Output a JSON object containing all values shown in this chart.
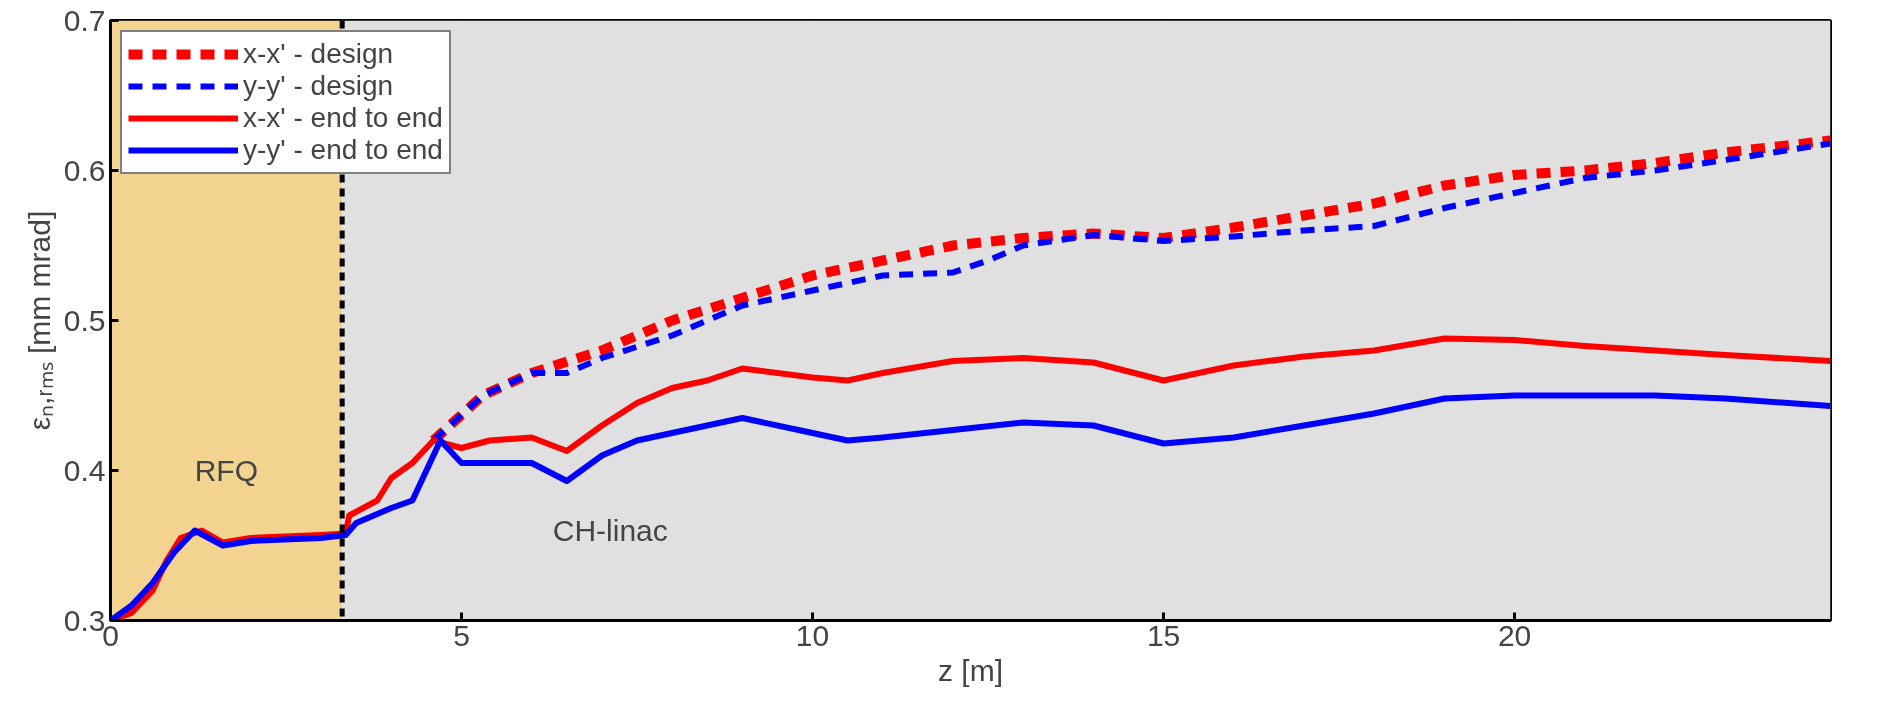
{
  "chart_data": {
    "type": "line",
    "xlabel": "z [m]",
    "ylabel": "εₙ,ᵣₘₛ [mm mrad]",
    "xlim": [
      0,
      24.5
    ],
    "ylim": [
      0.3,
      0.7
    ],
    "xticks": [
      0,
      5,
      10,
      15,
      20
    ],
    "yticks": [
      0.3,
      0.4,
      0.5,
      0.6,
      0.7
    ],
    "grid": true,
    "legend": "top left",
    "bands": [
      {
        "axis": "x",
        "from": 0,
        "to": 3.3,
        "label": "RFQ",
        "color": "#f2d38f"
      },
      {
        "axis": "x",
        "from": 3.3,
        "to": 24.5,
        "label": "CH-linac",
        "color": "#e0e0e0"
      }
    ],
    "ref_lines": [
      {
        "axis": "x",
        "value": 3.3,
        "color": "#000000",
        "line_style": "dashed"
      }
    ],
    "series": [
      {
        "name": "x-x' - design",
        "color": "#ff0000",
        "line_style": "dashed",
        "x": [
          4.6,
          5.3,
          6,
          7,
          8,
          9,
          10,
          11,
          12,
          13,
          14,
          15,
          16,
          17,
          18,
          19,
          20,
          21,
          22,
          23,
          24.5
        ],
        "values": [
          0.42,
          0.45,
          0.465,
          0.48,
          0.5,
          0.515,
          0.53,
          0.54,
          0.55,
          0.555,
          0.558,
          0.555,
          0.562,
          0.57,
          0.578,
          0.59,
          0.597,
          0.6,
          0.605,
          0.612,
          0.62
        ]
      },
      {
        "name": "y-y' - design",
        "color": "#0000ff",
        "line_style": "dashed",
        "x": [
          4.6,
          5.3,
          6,
          6.5,
          7,
          8,
          9,
          10,
          11,
          12,
          12.5,
          13,
          14,
          15,
          16,
          17,
          18,
          19,
          20,
          21,
          22,
          23,
          24.5
        ],
        "values": [
          0.42,
          0.45,
          0.465,
          0.465,
          0.475,
          0.49,
          0.51,
          0.52,
          0.53,
          0.532,
          0.54,
          0.55,
          0.557,
          0.553,
          0.556,
          0.56,
          0.563,
          0.575,
          0.585,
          0.595,
          0.6,
          0.607,
          0.618
        ]
      },
      {
        "name": "x-x' - end to end",
        "color": "#ff0000",
        "line_style": "solid",
        "x": [
          0,
          0.3,
          0.6,
          0.8,
          1.0,
          1.3,
          1.6,
          2,
          3,
          3.35,
          3.4,
          3.8,
          4.0,
          4.3,
          4.6,
          5,
          5.4,
          6,
          6.5,
          7,
          7.5,
          8,
          8.5,
          9,
          10,
          10.5,
          11,
          12,
          13,
          14,
          15,
          16,
          17,
          18,
          19,
          20,
          21,
          22,
          23,
          24.5
        ],
        "values": [
          0.3,
          0.305,
          0.32,
          0.34,
          0.355,
          0.36,
          0.352,
          0.355,
          0.357,
          0.358,
          0.37,
          0.38,
          0.395,
          0.405,
          0.42,
          0.415,
          0.42,
          0.422,
          0.413,
          0.43,
          0.445,
          0.455,
          0.46,
          0.468,
          0.462,
          0.46,
          0.465,
          0.473,
          0.475,
          0.472,
          0.46,
          0.47,
          0.476,
          0.48,
          0.488,
          0.487,
          0.483,
          0.48,
          0.477,
          0.473
        ]
      },
      {
        "name": "y-y' - end to end",
        "color": "#0000ff",
        "line_style": "solid",
        "x": [
          0,
          0.3,
          0.6,
          0.9,
          1.2,
          1.6,
          2,
          3,
          3.35,
          3.5,
          4,
          4.3,
          4.7,
          5,
          6,
          6.5,
          7,
          7.5,
          8.5,
          9,
          10,
          10.5,
          11,
          12,
          13,
          14,
          15,
          16,
          17,
          18,
          19,
          20,
          21,
          22,
          23,
          24.5
        ],
        "values": [
          0.3,
          0.31,
          0.325,
          0.345,
          0.36,
          0.35,
          0.353,
          0.355,
          0.357,
          0.365,
          0.375,
          0.38,
          0.42,
          0.405,
          0.405,
          0.393,
          0.41,
          0.42,
          0.43,
          0.435,
          0.425,
          0.42,
          0.422,
          0.427,
          0.432,
          0.43,
          0.418,
          0.422,
          0.43,
          0.438,
          0.448,
          0.45,
          0.45,
          0.45,
          0.448,
          0.443
        ]
      }
    ]
  }
}
